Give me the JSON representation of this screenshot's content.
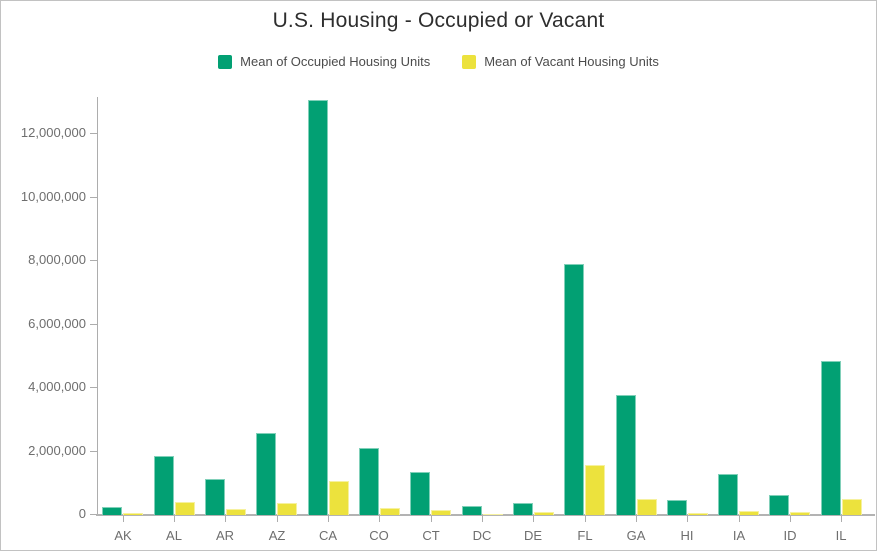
{
  "chart_data": {
    "type": "bar",
    "title": "U.S. Housing - Occupied or Vacant",
    "categories": [
      "AK",
      "AL",
      "AR",
      "AZ",
      "CA",
      "CO",
      "CT",
      "DC",
      "DE",
      "FL",
      "GA",
      "HI",
      "IA",
      "ID",
      "IL"
    ],
    "series": [
      {
        "name": "Mean of Occupied Housing Units",
        "color": "#02a073",
        "values": [
          250000,
          1850000,
          1130000,
          2600000,
          13100000,
          2100000,
          1360000,
          270000,
          370000,
          7900000,
          3780000,
          460000,
          1280000,
          630000,
          4850000
        ]
      },
      {
        "name": "Mean of Vacant Housing Units",
        "color": "#ece23d",
        "values": [
          70000,
          410000,
          200000,
          390000,
          1070000,
          230000,
          150000,
          40000,
          80000,
          1580000,
          490000,
          60000,
          140000,
          80000,
          490000
        ]
      }
    ],
    "xlabel": "",
    "ylabel": "",
    "ylim": [
      0,
      13150000
    ],
    "yticks": [
      0,
      2000000,
      4000000,
      6000000,
      8000000,
      10000000,
      12000000
    ],
    "ytick_labels": [
      "0",
      "2,000,000",
      "4,000,000",
      "6,000,000",
      "8,000,000",
      "10,000,000",
      "12,000,000"
    ],
    "legend_position": "top",
    "grid": false
  },
  "colors": {
    "axis_line": "#adadad",
    "axis_text": "#6e6e6e",
    "title_text": "#2e2e2e",
    "legend_text": "#4c4c4c",
    "canvas_border": "#c2c2c2",
    "background": "#ffffff"
  }
}
